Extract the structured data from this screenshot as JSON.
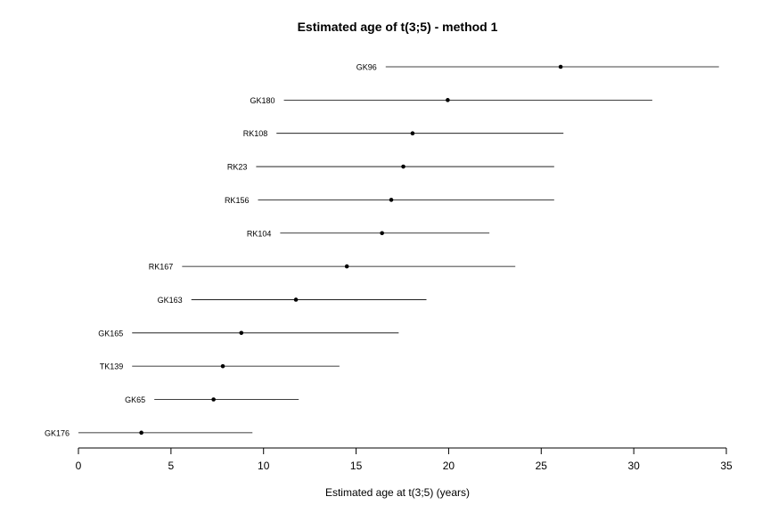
{
  "chart_data": {
    "type": "forest",
    "title": "Estimated age of t(3;5) - method 1",
    "xlabel": "Estimated age at t(3;5) (years)",
    "ylabel": "",
    "xlim": [
      0,
      35
    ],
    "xticks": [
      0,
      5,
      10,
      15,
      20,
      25,
      30,
      35
    ],
    "grid": false,
    "samples": [
      {
        "label": "GK96",
        "estimate": 26.05,
        "low": 16.6,
        "high": 34.6
      },
      {
        "label": "GK180",
        "estimate": 19.95,
        "low": 11.1,
        "high": 31.0
      },
      {
        "label": "RK108",
        "estimate": 18.05,
        "low": 10.7,
        "high": 26.2
      },
      {
        "label": "RK23",
        "estimate": 17.55,
        "low": 9.6,
        "high": 25.7
      },
      {
        "label": "RK156",
        "estimate": 16.9,
        "low": 9.7,
        "high": 25.7
      },
      {
        "label": "RK104",
        "estimate": 16.4,
        "low": 10.9,
        "high": 22.2
      },
      {
        "label": "RK167",
        "estimate": 14.5,
        "low": 5.6,
        "high": 23.6
      },
      {
        "label": "GK163",
        "estimate": 11.75,
        "low": 6.1,
        "high": 18.8
      },
      {
        "label": "GK165",
        "estimate": 8.8,
        "low": 2.9,
        "high": 17.3
      },
      {
        "label": "TK139",
        "estimate": 7.8,
        "low": 2.9,
        "high": 14.1
      },
      {
        "label": "GK65",
        "estimate": 7.3,
        "low": 4.1,
        "high": 11.9
      },
      {
        "label": "GK176",
        "estimate": 3.4,
        "low": 0.0,
        "high": 9.4
      }
    ]
  }
}
